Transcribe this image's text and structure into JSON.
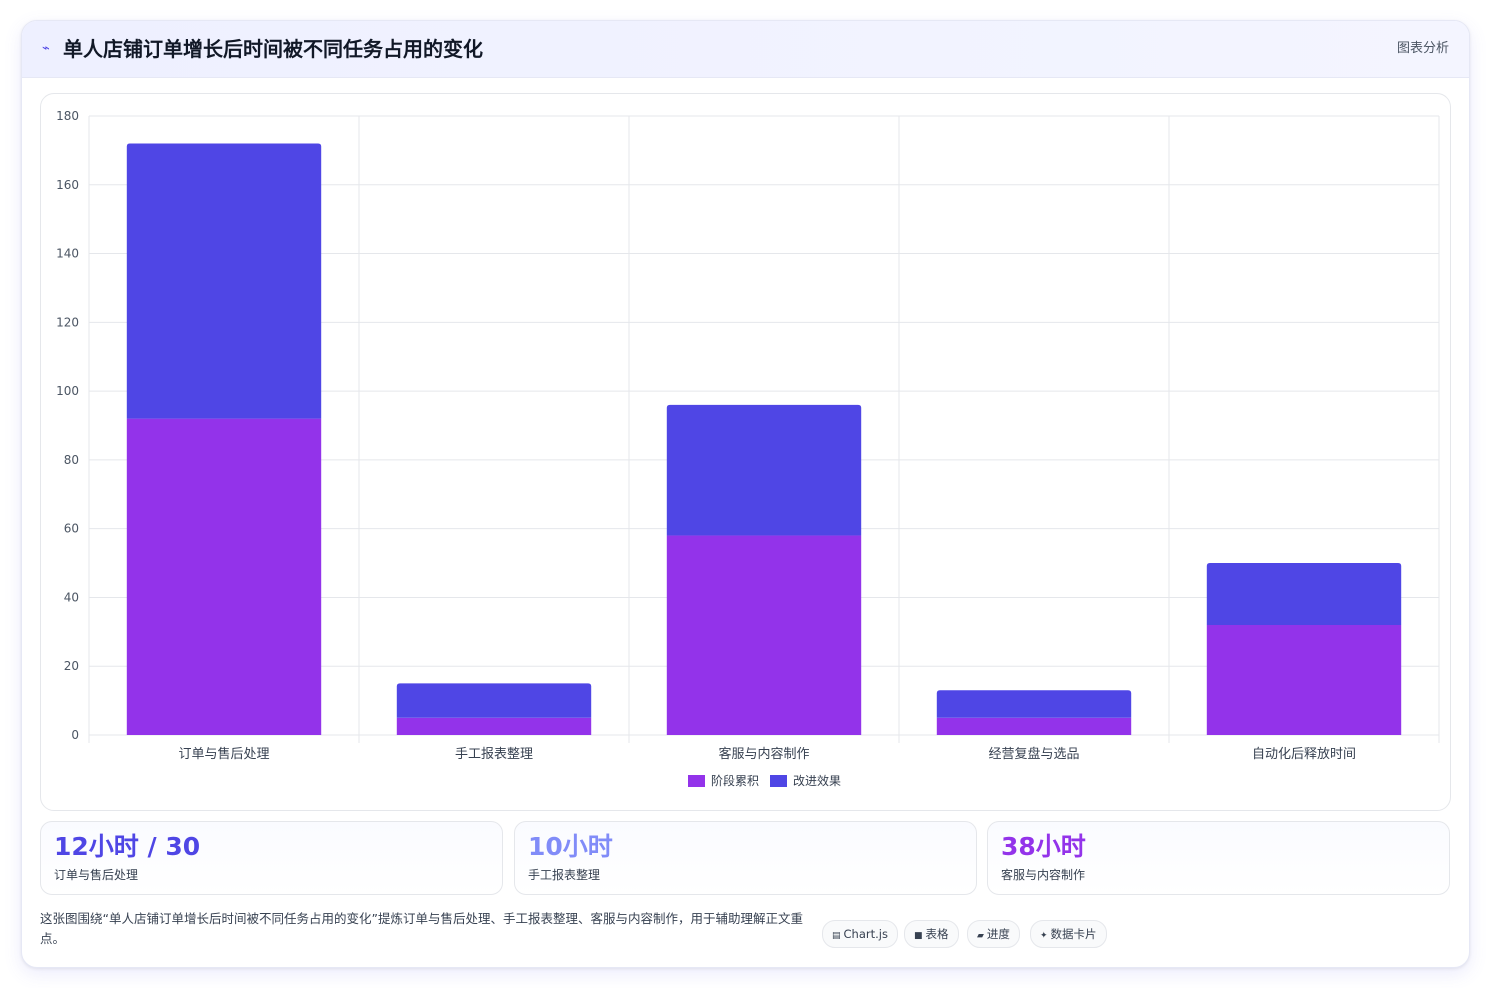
{
  "header": {
    "icon": "sparkline-icon",
    "title": "单人店铺订单增长后时间被不同任务占用的变化",
    "link_label": "图表分析"
  },
  "colors": {
    "series_stage": "#9333ea",
    "series_improve": "#4f46e5",
    "stat1": "#4f46e5",
    "stat2": "#818cf8",
    "stat3": "#9333ea"
  },
  "chart_data": {
    "type": "bar",
    "stacked": true,
    "categories": [
      "订单与售后处理",
      "手工报表整理",
      "客服与内容制作",
      "经营复盘与选品",
      "自动化后释放时间"
    ],
    "series": [
      {
        "name": "阶段累积",
        "values": [
          92,
          5,
          58,
          5,
          32
        ]
      },
      {
        "name": "改进效果",
        "values": [
          80,
          10,
          38,
          8,
          18
        ]
      }
    ],
    "ylim": [
      0,
      180
    ],
    "yticks": [
      0,
      20,
      40,
      60,
      80,
      100,
      120,
      140,
      160,
      180
    ],
    "grid": true,
    "legend": "bottom",
    "xlabel": "",
    "ylabel": "",
    "title": ""
  },
  "stats": [
    {
      "value": "12小时 / 30",
      "label": "订单与售后处理"
    },
    {
      "value": "10小时",
      "label": "手工报表整理"
    },
    {
      "value": "38小时",
      "label": "客服与内容制作"
    }
  ],
  "description": "这张图围绕“单人店铺订单增长后时间被不同任务占用的变化”提炼订单与售后处理、手工报表整理、客服与内容制作，用于辅助理解正文重点。",
  "chips": [
    {
      "icon": "chart-icon",
      "glyph": "▤",
      "label": "Chart.js"
    },
    {
      "icon": "table-icon",
      "glyph": "■",
      "label": "表格"
    },
    {
      "icon": "progress-icon",
      "glyph": "▰",
      "label": "进度"
    },
    {
      "icon": "sparkle-icon",
      "glyph": "✦",
      "label": "数据卡片"
    }
  ]
}
